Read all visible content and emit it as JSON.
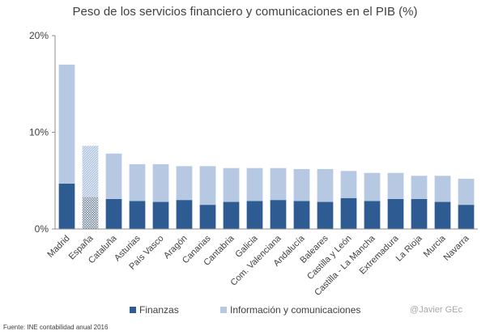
{
  "chart_data": {
    "type": "bar",
    "stacked": true,
    "title": "Peso de los servicios financiero y comunicaciones en el PIB (%)",
    "xlabel": "",
    "ylabel": "",
    "ylim": [
      0,
      20
    ],
    "yticks": [
      "0%",
      "10%",
      "20%"
    ],
    "ytick_values": [
      0,
      10,
      20
    ],
    "categories": [
      "Madrid",
      "España",
      "Cataluña",
      "Asturias",
      "País Vasco",
      "Aragón",
      "Canarias",
      "Cantabria",
      "Galicia",
      "Com. Valenciana",
      "Andalucía",
      "Baleares",
      "Castilla y León",
      "Castilla - La Mancha",
      "Extremadura",
      "La Rioja",
      "Murcia",
      "Navarra"
    ],
    "highlight_category": "España",
    "series": [
      {
        "name": "Finanzas",
        "color": "#2e5b91",
        "values": [
          4.7,
          3.3,
          3.1,
          2.9,
          2.8,
          3.0,
          2.5,
          2.8,
          2.9,
          3.0,
          2.9,
          2.8,
          3.2,
          2.9,
          3.1,
          3.1,
          2.8,
          2.5
        ]
      },
      {
        "name": "Información y comunicaciones",
        "color": "#b6c8e2",
        "values": [
          12.3,
          5.3,
          4.7,
          3.8,
          3.9,
          3.5,
          4.0,
          3.5,
          3.4,
          3.3,
          3.3,
          3.4,
          2.8,
          2.9,
          2.7,
          2.4,
          2.7,
          2.7
        ]
      }
    ],
    "legend_position": "bottom",
    "grid": false
  },
  "legend": {
    "finanzas_label": "Finanzas",
    "info_label": "Información y comunicaciones"
  },
  "watermark": "@Javier GEc",
  "source": "Fuente: INE contabilidad anual 2016"
}
